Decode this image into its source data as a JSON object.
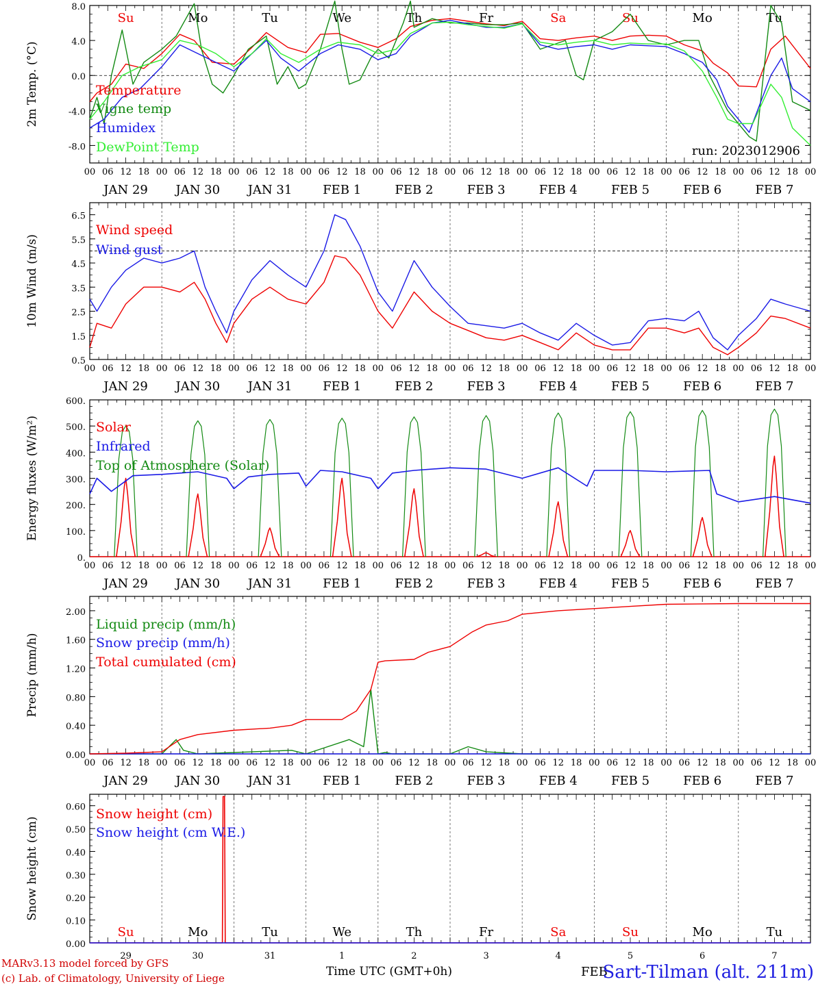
{
  "colors": {
    "red": "#ee0000",
    "green": "#138a13",
    "blue": "#1a1ae6",
    "lightgreen": "#33ee33",
    "purple": "#800080"
  },
  "x_axis": {
    "hour_ticks": [
      "00",
      "06",
      "12",
      "18"
    ],
    "final_tick": "00",
    "dates": [
      "JAN 29",
      "JAN 30",
      "JAN 31",
      "FEB  1",
      "FEB  2",
      "FEB  3",
      "FEB  4",
      "FEB  5",
      "FEB  6",
      "FEB  7"
    ],
    "weekdays": [
      "Su",
      "Mo",
      "Tu",
      "We",
      "Th",
      "Fr",
      "Sa",
      "Su",
      "Mo",
      "Tu"
    ],
    "weekend_flags": [
      true,
      false,
      false,
      false,
      false,
      false,
      true,
      true,
      false,
      false
    ],
    "day_numbers": [
      "29",
      "30",
      "31",
      "1",
      "2",
      "3",
      "4",
      "5",
      "6",
      "7"
    ],
    "month_label": "FEB",
    "title": "Time UTC (GMT+0h)"
  },
  "footer": {
    "credit_line1": "MARv3.13 model forced by GFS",
    "credit_line2": "(c) Lab. of Climatology, University of Liege",
    "station": "Sart-Tilman (alt. 211m)"
  },
  "chart_data": [
    {
      "type": "line",
      "ylabel": "2m Temp. (°C)",
      "yticks": [
        "8.0",
        "4.0",
        "0.0",
        "-4.0",
        "-8.0"
      ],
      "ylim": [
        -10,
        8
      ],
      "run_label": "run: 2023012906",
      "x_unit": "days since JAN 29 00 UTC",
      "series": [
        {
          "name": "Temperature",
          "color": "red",
          "x": [
            0,
            0.1,
            0.3,
            0.5,
            0.75,
            1,
            1.25,
            1.45,
            1.7,
            2,
            2.25,
            2.45,
            2.75,
            3,
            3.2,
            3.45,
            3.75,
            4,
            4.25,
            4.45,
            4.75,
            5,
            5.25,
            5.5,
            5.75,
            6,
            6.25,
            6.5,
            6.75,
            7,
            7.25,
            7.5,
            7.75,
            8,
            8.25,
            8.5,
            8.65,
            8.85,
            9,
            9.25,
            9.45,
            9.65,
            10
          ],
          "y": [
            -3,
            -2,
            -1,
            1.3,
            0.8,
            2.5,
            4.7,
            4,
            1.5,
            1.3,
            3.2,
            4.9,
            3.2,
            2.6,
            4.7,
            4.8,
            3.8,
            3.2,
            4.2,
            5.6,
            6.3,
            6.5,
            6.2,
            5.9,
            5.7,
            6.2,
            4.2,
            4,
            4.3,
            4.5,
            4,
            4.5,
            4.6,
            4.5,
            3.5,
            2.8,
            1.4,
            0.3,
            -1.2,
            -1.3,
            3,
            4.5,
            0.8
          ]
        },
        {
          "name": "Vigne temp",
          "color": "green",
          "x": [
            0,
            0.1,
            0.2,
            0.3,
            0.45,
            0.6,
            0.75,
            1,
            1.2,
            1.45,
            1.55,
            1.7,
            1.85,
            2,
            2.2,
            2.45,
            2.6,
            2.75,
            2.9,
            3,
            3.2,
            3.4,
            3.5,
            3.6,
            3.75,
            3.9,
            4,
            4.15,
            4.35,
            4.45,
            4.5,
            4.75,
            5,
            5.25,
            5.5,
            5.75,
            6,
            6.25,
            6.6,
            6.75,
            6.85,
            7,
            7.25,
            7.5,
            7.75,
            8,
            8.25,
            8.45,
            8.6,
            8.85,
            9,
            9.15,
            9.25,
            9.45,
            9.6,
            9.75,
            10
          ],
          "y": [
            -5,
            -2.5,
            -5.5,
            0,
            5.2,
            -1,
            1.5,
            3,
            4.5,
            8.2,
            3,
            -1,
            -2,
            0,
            3,
            4.5,
            -1,
            1,
            -1.5,
            -1,
            3,
            8.5,
            3,
            -1,
            -0.5,
            2,
            3,
            2,
            6,
            8.5,
            5.5,
            6.5,
            6,
            6,
            5.8,
            5.8,
            6,
            3,
            4,
            0,
            -0.5,
            4,
            5,
            7,
            4,
            3.5,
            4,
            4,
            0,
            -4,
            -5.5,
            -7,
            -7.5,
            8,
            6,
            -3,
            -4
          ]
        },
        {
          "name": "Humidex",
          "color": "blue",
          "x": [
            0,
            0.2,
            0.45,
            0.7,
            1,
            1.25,
            1.5,
            1.75,
            2,
            2.25,
            2.45,
            2.65,
            2.9,
            3.2,
            3.45,
            3.75,
            4,
            4.25,
            4.45,
            4.75,
            5,
            5.25,
            5.5,
            5.75,
            6,
            6.25,
            6.5,
            6.75,
            7,
            7.25,
            7.5,
            7.75,
            8,
            8.25,
            8.5,
            8.7,
            8.85,
            9,
            9.15,
            9.45,
            9.6,
            9.75,
            10
          ],
          "y": [
            -6,
            -5,
            -2.5,
            -1.5,
            1,
            3.5,
            2.5,
            1.5,
            0.5,
            2.5,
            4,
            2,
            0.5,
            2.5,
            3.5,
            3,
            1.8,
            2.5,
            4.5,
            6,
            6.3,
            5.9,
            5.5,
            5.5,
            5.9,
            3.5,
            3,
            3.3,
            3.5,
            3,
            3.5,
            3.4,
            3.3,
            2.5,
            1.5,
            -0.5,
            -3.5,
            -5,
            -6.5,
            0,
            2,
            -1.5,
            -3
          ]
        },
        {
          "name": "DewPoint Temp",
          "color": "lightgreen",
          "x": [
            0,
            0.2,
            0.45,
            0.7,
            1,
            1.25,
            1.5,
            1.75,
            2,
            2.25,
            2.45,
            2.65,
            2.9,
            3.2,
            3.45,
            3.75,
            4,
            4.25,
            4.45,
            4.75,
            5,
            5.25,
            5.5,
            5.75,
            6,
            6.25,
            6.5,
            6.75,
            7,
            7.25,
            7.5,
            7.75,
            8,
            8.25,
            8.5,
            8.7,
            8.85,
            9,
            9.2,
            9.45,
            9.6,
            9.75,
            10
          ],
          "y": [
            -5,
            -3,
            0,
            1,
            1.8,
            4,
            3.5,
            2.5,
            1,
            2.5,
            4.2,
            2.5,
            1.5,
            3,
            3.8,
            3.5,
            2.5,
            3,
            4.8,
            6,
            6.1,
            5.8,
            5.6,
            5.4,
            5.9,
            3.8,
            3.5,
            3.8,
            4,
            3.5,
            3.7,
            3.6,
            3.6,
            2.8,
            0.5,
            -2.5,
            -5,
            -5.5,
            -5.5,
            -1,
            -2.5,
            -6,
            -8
          ]
        }
      ]
    },
    {
      "type": "line",
      "ylabel": "10m Wind (m/s)",
      "yticks": [
        "6.5",
        "5.5",
        "4.5",
        "3.5",
        "2.5",
        "1.5",
        "0.5"
      ],
      "ylim": [
        0.5,
        7
      ],
      "ref_line": 5,
      "x_unit": "days since JAN 29 00 UTC",
      "series": [
        {
          "name": "Wind speed",
          "color": "red",
          "x": [
            0,
            0.1,
            0.3,
            0.5,
            0.75,
            1,
            1.25,
            1.45,
            1.6,
            1.75,
            1.9,
            2,
            2.25,
            2.5,
            2.75,
            3,
            3.25,
            3.4,
            3.55,
            3.75,
            4,
            4.2,
            4.5,
            4.75,
            5,
            5.25,
            5.5,
            5.75,
            6,
            6.25,
            6.5,
            6.75,
            7,
            7.25,
            7.5,
            7.75,
            8,
            8.25,
            8.45,
            8.65,
            8.85,
            9,
            9.25,
            9.45,
            9.65,
            10
          ],
          "y": [
            1,
            2,
            1.8,
            2.8,
            3.5,
            3.5,
            3.3,
            3.7,
            3,
            2,
            1.2,
            2,
            3,
            3.5,
            3,
            2.8,
            3.7,
            4.8,
            4.7,
            4,
            2.5,
            1.8,
            3.3,
            2.5,
            2,
            1.7,
            1.4,
            1.3,
            1.5,
            1.2,
            0.9,
            1.6,
            1.1,
            0.9,
            0.9,
            1.8,
            1.8,
            1.6,
            1.8,
            1,
            0.7,
            1,
            1.6,
            2.3,
            2.2,
            1.8
          ]
        },
        {
          "name": "Wind gust",
          "color": "blue",
          "x": [
            0,
            0.1,
            0.3,
            0.5,
            0.75,
            1,
            1.25,
            1.45,
            1.6,
            1.75,
            1.9,
            2,
            2.25,
            2.5,
            2.75,
            3,
            3.25,
            3.4,
            3.55,
            3.75,
            4,
            4.2,
            4.5,
            4.75,
            5,
            5.25,
            5.5,
            5.75,
            6,
            6.25,
            6.5,
            6.75,
            7,
            7.25,
            7.5,
            7.75,
            8,
            8.25,
            8.45,
            8.65,
            8.85,
            9,
            9.25,
            9.45,
            9.65,
            10
          ],
          "y": [
            3,
            2.5,
            3.5,
            4.2,
            4.7,
            4.5,
            4.7,
            5,
            3.5,
            2.5,
            1.6,
            2.5,
            3.8,
            4.6,
            4,
            3.5,
            5,
            6.5,
            6.3,
            5.2,
            3.3,
            2.5,
            4.6,
            3.5,
            2.7,
            2,
            1.9,
            1.8,
            2,
            1.6,
            1.3,
            2,
            1.5,
            1.1,
            1.2,
            2.1,
            2.2,
            2.1,
            2.5,
            1.4,
            0.9,
            1.5,
            2.2,
            3,
            2.8,
            2.5
          ]
        }
      ]
    },
    {
      "type": "line",
      "ylabel": "Energy fluxes (W/m²)",
      "yticks": [
        "600.",
        "500.",
        "400.",
        "300.",
        "200.",
        "100.",
        "0."
      ],
      "ylim": [
        0,
        600
      ],
      "x_unit": "days since JAN 29 00 UTC",
      "solar_peak_x": [
        0.5,
        1.5,
        2.5,
        3.5,
        4.5,
        5.5,
        6.5,
        7.5,
        8.5,
        9.5
      ],
      "toa_peaks": [
        500,
        520,
        525,
        530,
        535,
        540,
        550,
        555,
        560,
        565
      ],
      "solar_peaks": [
        300,
        240,
        110,
        300,
        260,
        15,
        210,
        100,
        150,
        385
      ],
      "series": [
        {
          "name": "Solar",
          "color": "red"
        },
        {
          "name": "Infrared",
          "color": "blue",
          "x": [
            0,
            0.1,
            0.3,
            0.6,
            1,
            1.5,
            1.9,
            2,
            2.2,
            2.5,
            2.9,
            3,
            3.2,
            3.5,
            3.9,
            4,
            4.2,
            4.5,
            5,
            5.5,
            6,
            6.5,
            6.9,
            7,
            7.5,
            8,
            8.6,
            8.7,
            9,
            9.5,
            10
          ],
          "y": [
            240,
            300,
            250,
            310,
            315,
            325,
            300,
            260,
            305,
            315,
            320,
            270,
            330,
            325,
            300,
            260,
            320,
            330,
            340,
            335,
            300,
            340,
            270,
            330,
            330,
            325,
            330,
            240,
            210,
            230,
            205
          ]
        },
        {
          "name": "Top of Atmosphere (Solar)",
          "color": "green"
        }
      ]
    },
    {
      "type": "line",
      "ylabel": "Precip (mm/h)",
      "yticks": [
        "2.00",
        "1.60",
        "1.20",
        "0.80",
        "0.40",
        "0.00"
      ],
      "ylim": [
        0,
        2.2
      ],
      "x_unit": "days since JAN 29 00 UTC",
      "series": [
        {
          "name": "Liquid precip (mm/h)",
          "color": "green",
          "x": [
            0,
            1,
            1.2,
            1.3,
            1.5,
            2.8,
            3,
            3.6,
            3.8,
            3.9,
            4,
            4.1,
            4.2,
            5,
            5.25,
            5.5,
            6,
            10
          ],
          "y": [
            0,
            0,
            0.2,
            0.05,
            0,
            0.05,
            0,
            0.2,
            0.1,
            0.9,
            0,
            0.02,
            0,
            0,
            0.1,
            0.03,
            0,
            0
          ]
        },
        {
          "name": "Snow precip (mm/h)",
          "color": "blue",
          "x": [
            0,
            10
          ],
          "y": [
            0,
            0
          ]
        },
        {
          "name": "Total cumulated (cm)",
          "color": "red",
          "x": [
            0,
            0.5,
            1,
            1.25,
            1.5,
            2,
            2.5,
            2.8,
            3,
            3.5,
            3.7,
            3.9,
            4,
            4.1,
            4.5,
            4.7,
            5,
            5.3,
            5.5,
            5.8,
            6,
            6.5,
            7,
            7.5,
            8,
            9,
            10
          ],
          "y": [
            0,
            0.01,
            0.03,
            0.2,
            0.27,
            0.33,
            0.36,
            0.4,
            0.48,
            0.48,
            0.6,
            0.9,
            1.28,
            1.3,
            1.32,
            1.42,
            1.5,
            1.7,
            1.8,
            1.86,
            1.95,
            2,
            2.03,
            2.06,
            2.09,
            2.1,
            2.1
          ]
        }
      ]
    },
    {
      "type": "line",
      "ylabel": "Snow height (cm)",
      "yticks": [
        "0.60",
        "0.50",
        "0.40",
        "0.30",
        "0.20",
        "0.10",
        "0.00"
      ],
      "ylim": [
        0,
        0.65
      ],
      "x_unit": "days since JAN 29 00 UTC",
      "series": [
        {
          "name": "Snow height (cm)",
          "color": "red",
          "x": [
            0,
            1.84,
            1.85,
            1.87,
            1.88,
            10
          ],
          "y": [
            0,
            0,
            0.64,
            0.64,
            0,
            0
          ]
        },
        {
          "name": "Snow height (cm W.E.)",
          "color": "blue",
          "x": [
            0,
            10
          ],
          "y": [
            0,
            0
          ]
        }
      ]
    }
  ]
}
